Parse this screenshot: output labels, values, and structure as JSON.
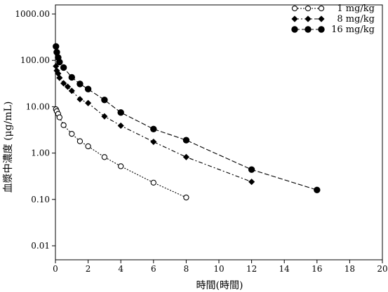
{
  "chart_data": {
    "type": "line",
    "xlabel": "時間(時間)",
    "ylabel": "血漿中濃度 (μg/mL)",
    "xscale": "linear",
    "yscale": "log",
    "xlim": [
      0,
      20
    ],
    "ylim": [
      0.01,
      1000
    ],
    "xticks": [
      "0",
      "2",
      "4",
      "6",
      "8",
      "10",
      "12",
      "14",
      "16",
      "18",
      "20"
    ],
    "yticks": [
      "0.01",
      "0.10",
      "1.00",
      "10.00",
      "100.00",
      "1000.00"
    ],
    "grid": false,
    "legend_position": "top-right",
    "series": [
      {
        "name": "1 mg/kg",
        "marker": "open-circle",
        "line_style": "dotted",
        "color": "#000000",
        "x": [
          0.033,
          0.083,
          0.167,
          0.25,
          0.5,
          1,
          1.5,
          2,
          3,
          4,
          6,
          8
        ],
        "y": [
          8.8,
          8.0,
          7.0,
          5.9,
          4.0,
          2.6,
          1.8,
          1.4,
          0.82,
          0.52,
          0.23,
          0.11
        ]
      },
      {
        "name": "8 mg/kg",
        "marker": "filled-diamond",
        "line_style": "dash-dot",
        "color": "#000000",
        "x": [
          0.033,
          0.083,
          0.167,
          0.25,
          0.5,
          0.75,
          1,
          1.5,
          2,
          3,
          4,
          6,
          8,
          12
        ],
        "y": [
          75,
          60,
          52,
          42,
          32,
          27,
          22,
          14.5,
          12,
          6.2,
          3.9,
          1.75,
          0.82,
          0.24
        ]
      },
      {
        "name": "16 mg/kg",
        "marker": "filled-circle",
        "line_style": "dashed",
        "color": "#000000",
        "x": [
          0.033,
          0.083,
          0.167,
          0.25,
          0.5,
          1,
          1.5,
          2,
          3,
          4,
          6,
          8,
          12,
          16
        ],
        "y": [
          200,
          150,
          115,
          92,
          70,
          43,
          31,
          24,
          14,
          7.5,
          3.3,
          1.9,
          0.44,
          0.16
        ]
      }
    ]
  }
}
